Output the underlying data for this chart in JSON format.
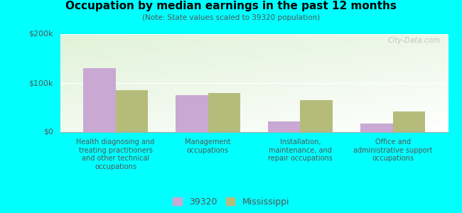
{
  "title": "Occupation by median earnings in the past 12 months",
  "subtitle": "(Note: State values scaled to 39320 population)",
  "categories": [
    "Health diagnosing and\ntreating practitioners\nand other technical\noccupations",
    "Management\noccupations",
    "Installation,\nmaintenance, and\nrepair occupations",
    "Office and\nadministrative support\noccupations"
  ],
  "values_39320": [
    130000,
    75000,
    22000,
    18000
  ],
  "values_mississippi": [
    85000,
    80000,
    65000,
    42000
  ],
  "bar_color_39320": "#c9a8d4",
  "bar_color_mississippi": "#b5bc7a",
  "background_color": "#00ffff",
  "ylim": [
    0,
    200000
  ],
  "ytick_labels": [
    "$0",
    "$100k",
    "$200k"
  ],
  "ytick_values": [
    0,
    100000,
    200000
  ],
  "legend_label_39320": "39320",
  "legend_label_mississippi": "Mississippi",
  "watermark": "City-Data.com",
  "bar_width": 0.35
}
